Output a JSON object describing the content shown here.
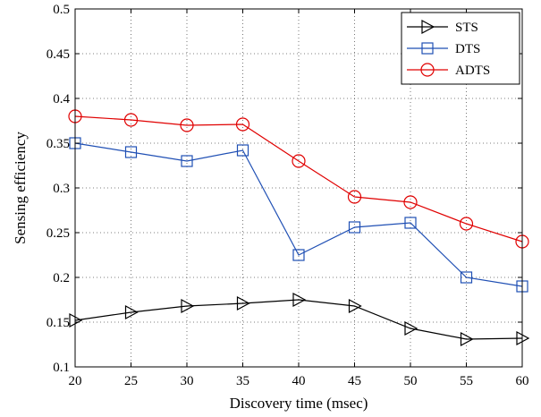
{
  "chart_data": {
    "type": "line",
    "title": "",
    "xlabel": "Discovery time (msec)",
    "ylabel": "Sensing efficiency",
    "xlim": [
      20,
      60
    ],
    "ylim": [
      0.1,
      0.5
    ],
    "x_ticks": [
      "20",
      "25",
      "30",
      "35",
      "40",
      "45",
      "50",
      "55",
      "60"
    ],
    "y_ticks": [
      "0.1",
      "0.15",
      "0.2",
      "0.25",
      "0.3",
      "0.35",
      "0.4",
      "0.45",
      "0.5"
    ],
    "grid": true,
    "legend_position": "top-right",
    "x": [
      20,
      25,
      30,
      35,
      40,
      45,
      50,
      55,
      60
    ],
    "series": [
      {
        "name": "STS",
        "color": "#000000",
        "marker": "triangle-right",
        "values": [
          0.152,
          0.161,
          0.168,
          0.171,
          0.175,
          0.168,
          0.143,
          0.131,
          0.132
        ]
      },
      {
        "name": "DTS",
        "color": "#1f4fb4",
        "marker": "square",
        "values": [
          0.35,
          0.34,
          0.33,
          0.342,
          0.225,
          0.256,
          0.261,
          0.2,
          0.19
        ]
      },
      {
        "name": "ADTS",
        "color": "#e00000",
        "marker": "circle",
        "values": [
          0.38,
          0.376,
          0.37,
          0.371,
          0.33,
          0.29,
          0.284,
          0.26,
          0.24
        ]
      }
    ]
  }
}
